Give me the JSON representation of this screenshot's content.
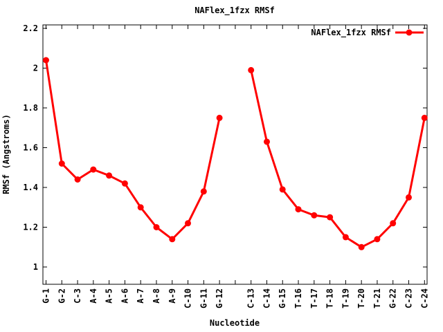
{
  "chart_data": {
    "type": "line",
    "title": "NAFlex_1fzx RMSf",
    "xlabel": "Nucleotide",
    "ylabel": "RMSf (Angstroms)",
    "legend": {
      "label": "NAFlex_1fzx RMSf",
      "position": "top-right-inside",
      "style": "line-with-point"
    },
    "series_color": "#ff0000",
    "frame_color": "#000000",
    "background_color": "#ffffff",
    "marker": "filled-circle",
    "grid": false,
    "categories": [
      "G-1",
      "G-2",
      "C-3",
      "A-4",
      "A-5",
      "A-6",
      "A-7",
      "A-8",
      "A-9",
      "C-10",
      "G-11",
      "G-12",
      "C-13",
      "C-14",
      "G-15",
      "T-16",
      "T-17",
      "T-18",
      "T-19",
      "T-20",
      "T-21",
      "G-22",
      "C-23",
      "C-24"
    ],
    "values": [
      2.04,
      1.52,
      1.44,
      1.49,
      1.46,
      1.42,
      1.3,
      1.2,
      1.14,
      1.22,
      1.38,
      1.75,
      1.99,
      1.63,
      1.39,
      1.29,
      1.26,
      1.25,
      1.15,
      1.1,
      1.14,
      1.22,
      1.35,
      1.75
    ],
    "line_break_after": "G-12",
    "yticks": [
      "1",
      "1.2",
      "1.4",
      "1.6",
      "1.8",
      "2",
      "2.2"
    ],
    "ylim": [
      0.91,
      2.22
    ],
    "xtick_rotation": -90
  }
}
